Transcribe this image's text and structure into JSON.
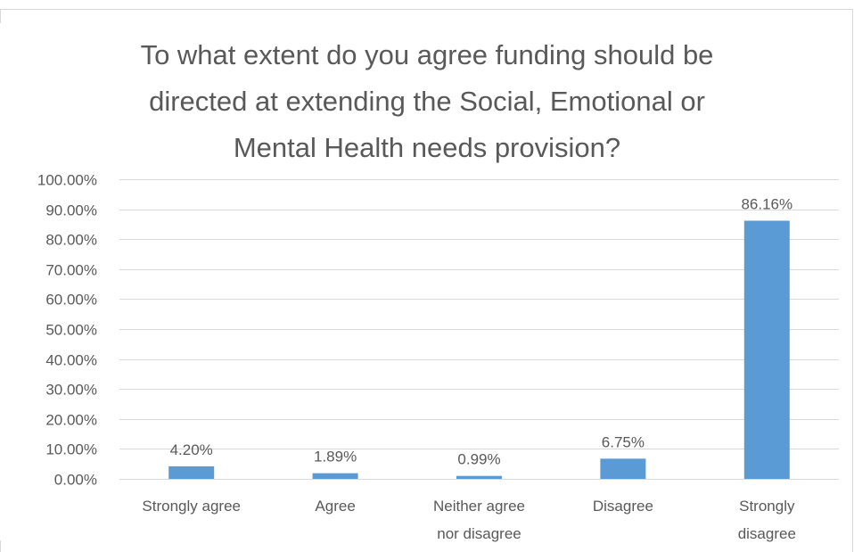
{
  "chart_data": {
    "type": "bar",
    "title_lines": [
      "To what extent do you agree funding should be",
      "directed at extending the Social, Emotional or",
      "Mental Health needs provision?"
    ],
    "categories": [
      [
        "Strongly agree"
      ],
      [
        "Agree"
      ],
      [
        "Neither agree",
        "nor disagree"
      ],
      [
        "Disagree"
      ],
      [
        "Strongly",
        "disagree"
      ]
    ],
    "values": [
      4.2,
      1.89,
      0.99,
      6.75,
      86.16
    ],
    "data_labels": [
      "4.20%",
      "1.89%",
      "0.99%",
      "6.75%",
      "86.16%"
    ],
    "ylim": [
      0,
      100
    ],
    "yticks": [
      0,
      10,
      20,
      30,
      40,
      50,
      60,
      70,
      80,
      90,
      100
    ],
    "ytick_labels": [
      "0.00%",
      "10.00%",
      "20.00%",
      "30.00%",
      "40.00%",
      "50.00%",
      "60.00%",
      "70.00%",
      "80.00%",
      "90.00%",
      "100.00%"
    ],
    "grid": true,
    "legend": "none",
    "colors": {
      "bar": "#5b9bd5",
      "grid": "#d9d9d9",
      "text": "#595959"
    }
  }
}
